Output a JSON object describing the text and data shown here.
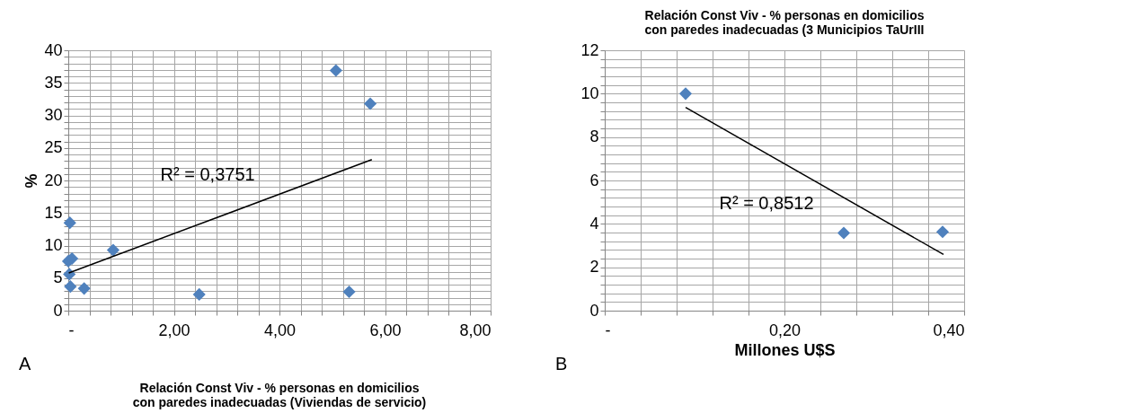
{
  "chart_data": [
    {
      "type": "scatter",
      "title": "Relación Const Viv - % personas en domicilios con paredes inadecuadas (Viviendas de servicio)",
      "ylabel": "%",
      "marker": "diamond",
      "grid": true,
      "series": [
        {
          "type": "scatter",
          "color": "#4f81bd",
          "x": [
            0.03,
            0.85,
            0.0,
            0.07,
            0.02,
            0.04,
            0.3,
            2.48,
            5.07,
            5.72,
            5.32
          ],
          "values": [
            13.5,
            9.3,
            7.6,
            8.0,
            5.6,
            3.7,
            3.4,
            2.5,
            36.9,
            31.8,
            2.9
          ]
        },
        {
          "type": "line",
          "color": "#000000",
          "marker": "none",
          "x": [
            0.01,
            5.75
          ],
          "values": [
            5.8,
            23.2
          ]
        }
      ],
      "xlim": [
        0,
        8
      ],
      "ylim": [
        0,
        40
      ],
      "xticks": [
        {
          "value": 0,
          "label": "-"
        },
        {
          "value": 0.4,
          "label": null
        },
        {
          "value": 0.8,
          "label": null
        },
        {
          "value": 1.2,
          "label": null
        },
        {
          "value": 1.6,
          "label": null
        },
        {
          "value": 2,
          "label": "2,00"
        },
        {
          "value": 2.4,
          "label": null
        },
        {
          "value": 2.8,
          "label": null
        },
        {
          "value": 3.2,
          "label": null
        },
        {
          "value": 3.6,
          "label": null
        },
        {
          "value": 4,
          "label": "4,00"
        },
        {
          "value": 4.4,
          "label": null
        },
        {
          "value": 4.8,
          "label": null
        },
        {
          "value": 5.2,
          "label": null
        },
        {
          "value": 5.6,
          "label": null
        },
        {
          "value": 6,
          "label": "6,00"
        },
        {
          "value": 6.4,
          "label": null
        },
        {
          "value": 6.8,
          "label": null
        },
        {
          "value": 7.2,
          "label": null
        },
        {
          "value": 7.6,
          "label": null
        },
        {
          "value": 8,
          "label": "8,00"
        }
      ],
      "yticks": [
        0,
        {
          "value": 1,
          "label": null
        },
        {
          "value": 2,
          "label": null
        },
        {
          "value": 3,
          "label": null
        },
        {
          "value": 4,
          "label": null
        },
        5,
        {
          "value": 6,
          "label": null
        },
        {
          "value": 7,
          "label": null
        },
        {
          "value": 8,
          "label": null
        },
        {
          "value": 9,
          "label": null
        },
        10,
        {
          "value": 11,
          "label": null
        },
        {
          "value": 12,
          "label": null
        },
        {
          "value": 13,
          "label": null
        },
        {
          "value": 14,
          "label": null
        },
        15,
        {
          "value": 16,
          "label": null
        },
        {
          "value": 17,
          "label": null
        },
        {
          "value": 18,
          "label": null
        },
        {
          "value": 19,
          "label": null
        },
        20,
        {
          "value": 21,
          "label": null
        },
        {
          "value": 22,
          "label": null
        },
        {
          "value": 23,
          "label": null
        },
        {
          "value": 24,
          "label": null
        },
        25,
        {
          "value": 26,
          "label": null
        },
        {
          "value": 27,
          "label": null
        },
        {
          "value": 28,
          "label": null
        },
        {
          "value": 29,
          "label": null
        },
        30,
        {
          "value": 31,
          "label": null
        },
        {
          "value": 32,
          "label": null
        },
        {
          "value": 33,
          "label": null
        },
        {
          "value": 34,
          "label": null
        },
        35,
        {
          "value": 36,
          "label": null
        },
        {
          "value": 37,
          "label": null
        },
        {
          "value": 38,
          "label": null
        },
        {
          "value": 39,
          "label": null
        },
        40
      ],
      "annotations": [
        "R² = 0,3751",
        "A"
      ]
    },
    {
      "type": "scatter",
      "title": "Relación Const Viv - % personas en domicilios con paredes inadecuadas  (3 Municipios TaUrIII",
      "xlabel": "Millones  U$S",
      "marker": "diamond",
      "grid": true,
      "series": [
        {
          "type": "scatter",
          "color": "#4f81bd",
          "x": [
            0.09,
            0.266,
            0.376
          ],
          "values": [
            10.0,
            3.58,
            3.63
          ]
        },
        {
          "type": "line",
          "color": "#000000",
          "marker": "none",
          "x": [
            0.09,
            0.377
          ],
          "values": [
            9.37,
            2.59
          ]
        }
      ],
      "xlim": [
        0,
        0.4
      ],
      "ylim": [
        0,
        12
      ],
      "xticks": [
        {
          "value": 0,
          "label": "-"
        },
        {
          "value": 0.04,
          "label": null
        },
        {
          "value": 0.08,
          "label": null
        },
        {
          "value": 0.12,
          "label": null
        },
        {
          "value": 0.16,
          "label": null
        },
        {
          "value": 0.2,
          "label": "0,20"
        },
        {
          "value": 0.24,
          "label": null
        },
        {
          "value": 0.28,
          "label": null
        },
        {
          "value": 0.32,
          "label": null
        },
        {
          "value": 0.36,
          "label": null
        },
        {
          "value": 0.4,
          "label": "0,40"
        }
      ],
      "yticks": [
        0,
        {
          "value": 0.4,
          "label": null
        },
        {
          "value": 0.8,
          "label": null
        },
        {
          "value": 1.2,
          "label": null
        },
        {
          "value": 1.6,
          "label": null
        },
        2,
        {
          "value": 2.4,
          "label": null
        },
        {
          "value": 2.8,
          "label": null
        },
        {
          "value": 3.2,
          "label": null
        },
        {
          "value": 3.6,
          "label": null
        },
        4,
        {
          "value": 4.4,
          "label": null
        },
        {
          "value": 4.8,
          "label": null
        },
        {
          "value": 5.2,
          "label": null
        },
        {
          "value": 5.6,
          "label": null
        },
        6,
        {
          "value": 6.4,
          "label": null
        },
        {
          "value": 6.8,
          "label": null
        },
        {
          "value": 7.2,
          "label": null
        },
        {
          "value": 7.6,
          "label": null
        },
        8,
        {
          "value": 8.4,
          "label": null
        },
        {
          "value": 8.8,
          "label": null
        },
        {
          "value": 9.2,
          "label": null
        },
        {
          "value": 9.6,
          "label": null
        },
        10,
        {
          "value": 10.4,
          "label": null
        },
        {
          "value": 10.8,
          "label": null
        },
        {
          "value": 11.2,
          "label": null
        },
        {
          "value": 11.6,
          "label": null
        },
        12
      ],
      "annotations": [
        "R² = 0,8512",
        "B"
      ]
    }
  ]
}
